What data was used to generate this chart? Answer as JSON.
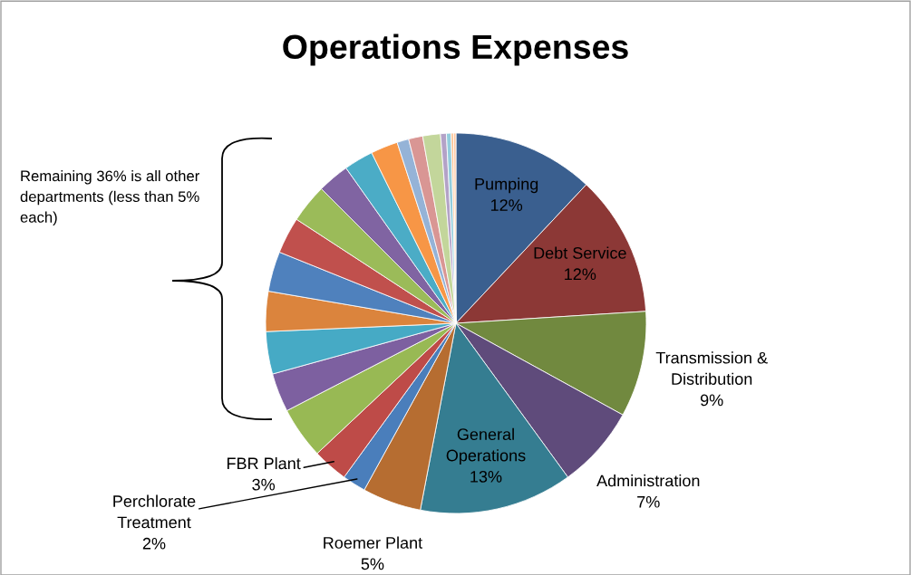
{
  "chart_data": {
    "type": "pie",
    "title": "Operations Expenses",
    "categories": [
      "Pumping",
      "Debt Service",
      "Transmission & Distribution",
      "Administration",
      "General Operations",
      "Roemer Plant",
      "Perchlorate Treatment",
      "FBR Plant",
      null,
      null,
      null,
      null,
      null,
      null,
      null,
      null,
      null,
      null,
      null,
      null,
      null,
      null,
      null,
      null,
      null
    ],
    "values": [
      12,
      12,
      9,
      7,
      13,
      5,
      2,
      3,
      4.4,
      3.3,
      3.6,
      3.4,
      3.4,
      3.1,
      3.3,
      2.7,
      2.5,
      2.3,
      1.0,
      1.2,
      1.5,
      0.5,
      0.4,
      0.2,
      0.2
    ],
    "value_labels": [
      "12%",
      "12%",
      "9%",
      "7%",
      "13%",
      "5%",
      "2%",
      "3%",
      null,
      null,
      null,
      null,
      null,
      null,
      null,
      null,
      null,
      null,
      null,
      null,
      null,
      null,
      null,
      null,
      null
    ],
    "colors": [
      "#3a5f8f",
      "#8c3836",
      "#71893f",
      "#5f4b7b",
      "#357d91",
      "#b66d31",
      "#4a7ebb",
      "#be4b48",
      "#98b954",
      "#7d60a0",
      "#46aac5",
      "#db843d",
      "#4f81bd",
      "#c0504d",
      "#9bbb59",
      "#8064a2",
      "#4bacc6",
      "#f79646",
      "#95b3d7",
      "#d99694",
      "#c3d69b",
      "#b3a2c7",
      "#93cddd",
      "#fac090",
      "#ffc7a0"
    ],
    "annotations": [
      "Remaining 36% is all other departments (less than 5% each)"
    ],
    "legend": false
  }
}
